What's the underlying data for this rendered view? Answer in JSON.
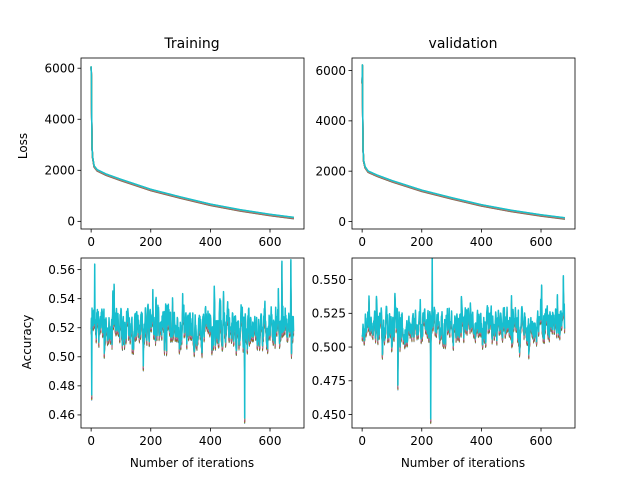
{
  "chart_data": [
    {
      "type": "line",
      "id": "train-loss",
      "title": "Training",
      "xlabel": "",
      "ylabel": "Loss",
      "xlim": [
        -34,
        714
      ],
      "ylim": [
        -300,
        6400
      ],
      "xticks": [
        0,
        200,
        400,
        600
      ],
      "yticks": [
        0,
        2000,
        4000,
        6000
      ],
      "ytick_labels": [
        "0",
        "2000",
        "4000",
        "6000"
      ],
      "series_style": "loss",
      "points": [
        [
          0,
          6050
        ],
        [
          1,
          5600
        ],
        [
          2,
          4000
        ],
        [
          3,
          2900
        ],
        [
          5,
          2500
        ],
        [
          10,
          2150
        ],
        [
          20,
          2000
        ],
        [
          50,
          1830
        ],
        [
          100,
          1620
        ],
        [
          200,
          1230
        ],
        [
          300,
          930
        ],
        [
          400,
          650
        ],
        [
          500,
          430
        ],
        [
          600,
          250
        ],
        [
          680,
          130
        ]
      ],
      "colors": [
        "#1f77b4",
        "#ff7f0e",
        "#2ca02c",
        "#d62728",
        "#9467bd",
        "#8c564b",
        "#e377c2",
        "#7f7f7f",
        "#bcbd22",
        "#17becf"
      ]
    },
    {
      "type": "line",
      "id": "val-loss",
      "title": "validation",
      "xlabel": "",
      "ylabel": "",
      "xlim": [
        -34,
        714
      ],
      "ylim": [
        -300,
        6500
      ],
      "xticks": [
        0,
        200,
        400,
        600
      ],
      "yticks": [
        0,
        2000,
        4000,
        6000
      ],
      "ytick_labels": [
        "0",
        "2000",
        "4000",
        "6000"
      ],
      "series_style": "loss",
      "points": [
        [
          0,
          5500
        ],
        [
          1,
          6200
        ],
        [
          2,
          4200
        ],
        [
          3,
          2900
        ],
        [
          5,
          2400
        ],
        [
          10,
          2150
        ],
        [
          20,
          1980
        ],
        [
          50,
          1820
        ],
        [
          100,
          1600
        ],
        [
          200,
          1220
        ],
        [
          300,
          920
        ],
        [
          400,
          640
        ],
        [
          500,
          420
        ],
        [
          600,
          240
        ],
        [
          680,
          120
        ]
      ],
      "colors": [
        "#1f77b4",
        "#ff7f0e",
        "#2ca02c",
        "#d62728",
        "#9467bd",
        "#8c564b",
        "#e377c2",
        "#7f7f7f",
        "#bcbd22",
        "#17becf"
      ]
    },
    {
      "type": "line",
      "id": "train-acc",
      "title": "",
      "xlabel": "Number of iterations",
      "ylabel": "Accuracy",
      "xlim": [
        -34,
        714
      ],
      "ylim": [
        0.451,
        0.568
      ],
      "xticks": [
        0,
        200,
        400,
        600
      ],
      "yticks": [
        0.46,
        0.48,
        0.5,
        0.52,
        0.54,
        0.56
      ],
      "ytick_labels": [
        "0.46",
        "0.48",
        "0.50",
        "0.52",
        "0.54",
        "0.56"
      ],
      "series_style": "noise",
      "x_count": 680,
      "center": 0.52,
      "spread": 0.012,
      "vmin": 0.472,
      "vmax": 0.565,
      "seed": 7,
      "spikes": [
        [
          2,
          0.472
        ],
        [
          12,
          0.562
        ],
        [
          175,
          0.492
        ],
        [
          515,
          0.456
        ],
        [
          640,
          0.564
        ],
        [
          670,
          0.565
        ]
      ],
      "colors": [
        "#1f77b4",
        "#ff7f0e",
        "#2ca02c",
        "#d62728",
        "#9467bd",
        "#8c564b",
        "#e377c2",
        "#7f7f7f",
        "#bcbd22",
        "#17becf"
      ]
    },
    {
      "type": "line",
      "id": "val-acc",
      "title": "",
      "xlabel": "Number of iterations",
      "ylabel": "",
      "xlim": [
        -34,
        714
      ],
      "ylim": [
        0.44,
        0.566
      ],
      "xticks": [
        0,
        200,
        400,
        600
      ],
      "yticks": [
        0.45,
        0.475,
        0.5,
        0.525,
        0.55
      ],
      "ytick_labels": [
        "0.450",
        "0.475",
        "0.500",
        "0.525",
        "0.550"
      ],
      "series_style": "noise",
      "x_count": 680,
      "center": 0.515,
      "spread": 0.011,
      "vmin": 0.47,
      "vmax": 0.56,
      "seed": 19,
      "spikes": [
        [
          230,
          0.445
        ],
        [
          235,
          0.567
        ],
        [
          675,
          0.551
        ],
        [
          120,
          0.47
        ]
      ],
      "colors": [
        "#1f77b4",
        "#ff7f0e",
        "#2ca02c",
        "#d62728",
        "#9467bd",
        "#8c564b",
        "#e377c2",
        "#7f7f7f",
        "#bcbd22",
        "#17becf"
      ]
    }
  ]
}
